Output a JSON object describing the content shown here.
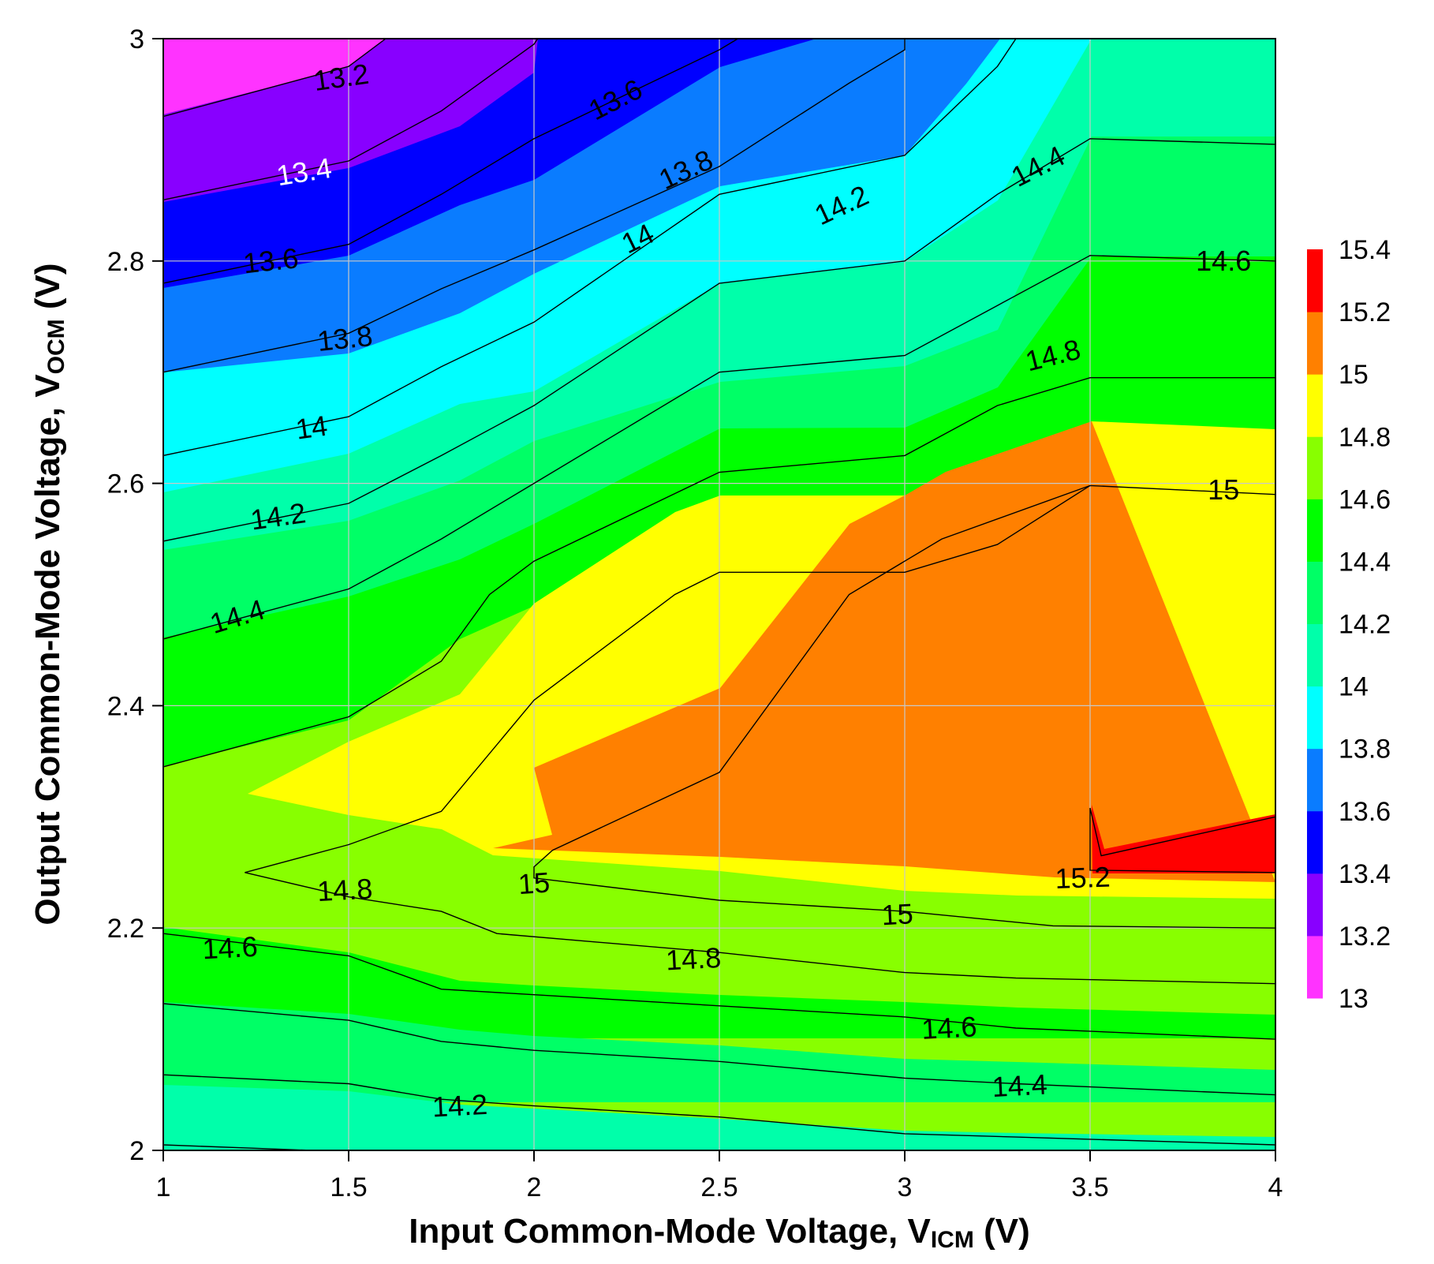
{
  "chart_data": {
    "type": "contour",
    "title": "",
    "xlabel_main": "Input Common-Mode Voltage, V",
    "xlabel_sub": "ICM",
    "xlabel_suffix": " (V)",
    "ylabel_main": "Output Common-Mode Voltage, V",
    "ylabel_sub": "OCM",
    "ylabel_suffix": " (V)",
    "xlim": [
      1,
      4
    ],
    "ylim": [
      2,
      3
    ],
    "x_ticks": [
      "1",
      "1.5",
      "2",
      "2.5",
      "3",
      "3.5",
      "4"
    ],
    "y_ticks": [
      "2",
      "2.2",
      "2.4",
      "2.6",
      "2.8",
      "3"
    ],
    "grid": true,
    "colorbar": {
      "placement": "right",
      "levels": [
        "13",
        "13.2",
        "13.4",
        "13.6",
        "13.8",
        "14",
        "14.2",
        "14.4",
        "14.6",
        "14.8",
        "15",
        "15.2",
        "15.4"
      ],
      "colors": [
        "#ff33ff",
        "#8800ff",
        "#0000ff",
        "#0a7cff",
        "#00ffff",
        "#00ffaa",
        "#00ff66",
        "#00ff00",
        "#88ff00",
        "#ffff00",
        "#ff8000",
        "#ff0000"
      ]
    },
    "contour_lines": [
      {
        "level": 13.2,
        "points": [
          [
            1.0,
            2.93
          ],
          [
            1.5,
            2.975
          ],
          [
            1.6,
            3.0
          ]
        ]
      },
      {
        "level": 13.4,
        "points": [
          [
            1.0,
            2.855
          ],
          [
            1.5,
            2.89
          ],
          [
            1.75,
            2.935
          ],
          [
            2.0,
            2.995
          ],
          [
            2.01,
            3.0
          ]
        ]
      },
      {
        "level": 13.6,
        "points": [
          [
            1.0,
            2.78
          ],
          [
            1.5,
            2.815
          ],
          [
            1.75,
            2.86
          ],
          [
            2.0,
            2.91
          ],
          [
            2.5,
            2.99
          ],
          [
            2.55,
            3.0
          ]
        ]
      },
      {
        "level": 13.8,
        "points": [
          [
            1.0,
            2.7
          ],
          [
            1.5,
            2.735
          ],
          [
            1.75,
            2.775
          ],
          [
            2.0,
            2.81
          ],
          [
            2.5,
            2.885
          ],
          [
            2.85,
            2.96
          ],
          [
            3.0,
            2.99
          ],
          [
            3.0,
            3.0
          ]
        ]
      },
      {
        "level": 14.0,
        "points": [
          [
            1.0,
            2.625
          ],
          [
            1.5,
            2.66
          ],
          [
            1.75,
            2.705
          ],
          [
            2.0,
            2.745
          ],
          [
            2.5,
            2.86
          ],
          [
            3.0,
            2.895
          ],
          [
            3.25,
            2.975
          ],
          [
            3.3,
            3.0
          ]
        ]
      },
      {
        "level": 14.2,
        "points": [
          [
            1.0,
            2.548
          ],
          [
            1.5,
            2.582
          ],
          [
            1.75,
            2.625
          ],
          [
            2.0,
            2.67
          ],
          [
            2.5,
            2.78
          ],
          [
            3.0,
            2.8
          ],
          [
            3.25,
            2.86
          ],
          [
            3.5,
            2.91
          ],
          [
            4.0,
            2.905
          ]
        ]
      },
      {
        "level": 14.4,
        "points": [
          [
            1.0,
            2.46
          ],
          [
            1.5,
            2.505
          ],
          [
            1.75,
            2.55
          ],
          [
            2.0,
            2.6
          ],
          [
            2.5,
            2.7
          ],
          [
            3.0,
            2.715
          ],
          [
            3.25,
            2.76
          ],
          [
            3.5,
            2.805
          ],
          [
            4.0,
            2.8
          ]
        ]
      },
      {
        "level": 14.6,
        "points": [
          [
            1.0,
            2.345
          ],
          [
            1.5,
            2.39
          ],
          [
            1.75,
            2.44
          ],
          [
            1.88,
            2.5
          ],
          [
            2.0,
            2.53
          ],
          [
            2.5,
            2.61
          ],
          [
            3.0,
            2.625
          ],
          [
            3.25,
            2.67
          ],
          [
            3.5,
            2.695
          ],
          [
            4.0,
            2.695
          ]
        ]
      },
      {
        "level": 14.8,
        "points": [
          [
            4.0,
            2.59
          ],
          [
            3.5,
            2.598
          ],
          [
            3.25,
            2.545
          ],
          [
            3.0,
            2.52
          ],
          [
            2.5,
            2.52
          ],
          [
            2.38,
            2.5
          ],
          [
            2.0,
            2.405
          ],
          [
            1.75,
            2.305
          ],
          [
            1.5,
            2.275
          ],
          [
            1.22,
            2.25
          ],
          [
            1.5,
            2.228
          ],
          [
            1.75,
            2.215
          ],
          [
            1.9,
            2.195
          ],
          [
            2.5,
            2.178
          ],
          [
            3.0,
            2.16
          ],
          [
            3.3,
            2.155
          ],
          [
            4.0,
            2.15
          ]
        ]
      },
      {
        "level": 15.0,
        "points": [
          [
            3.5,
            2.598
          ],
          [
            3.1,
            2.55
          ],
          [
            3.0,
            2.53
          ],
          [
            2.85,
            2.5
          ],
          [
            2.5,
            2.34
          ],
          [
            2.05,
            2.27
          ],
          [
            2.0,
            2.255
          ],
          [
            2.0,
            2.245
          ],
          [
            2.5,
            2.225
          ],
          [
            3.0,
            2.215
          ],
          [
            3.4,
            2.202
          ],
          [
            4.0,
            2.2
          ]
        ]
      },
      {
        "level": 15.2,
        "points": [
          [
            3.5,
            2.308
          ],
          [
            3.5,
            2.252
          ],
          [
            4.0,
            2.25
          ],
          [
            4.0,
            2.3
          ],
          [
            3.53,
            2.265
          ],
          [
            3.5,
            2.308
          ]
        ]
      },
      {
        "level": 14.6,
        "points": [
          [
            1.0,
            2.195
          ],
          [
            1.5,
            2.175
          ],
          [
            1.75,
            2.145
          ],
          [
            2.0,
            2.14
          ],
          [
            2.5,
            2.13
          ],
          [
            3.0,
            2.12
          ],
          [
            3.3,
            2.11
          ],
          [
            4.0,
            2.1
          ]
        ]
      },
      {
        "level": 14.4,
        "points": [
          [
            1.0,
            2.132
          ],
          [
            1.5,
            2.117
          ],
          [
            1.75,
            2.098
          ],
          [
            2.0,
            2.09
          ],
          [
            2.5,
            2.08
          ],
          [
            3.0,
            2.065
          ],
          [
            3.3,
            2.06
          ],
          [
            4.0,
            2.05
          ]
        ]
      },
      {
        "level": 14.2,
        "points": [
          [
            1.0,
            2.068
          ],
          [
            1.5,
            2.06
          ],
          [
            1.75,
            2.046
          ],
          [
            2.0,
            2.04
          ],
          [
            2.5,
            2.03
          ],
          [
            3.0,
            2.015
          ],
          [
            3.3,
            2.012
          ],
          [
            4.0,
            2.005
          ]
        ]
      },
      {
        "level": 14.0,
        "points": [
          [
            1.0,
            2.005
          ],
          [
            1.4,
            2.0
          ]
        ]
      }
    ],
    "contour_labels": [
      {
        "text": "13.2",
        "x": 1.48,
        "y": 2.965,
        "color": "#000000",
        "angle": -8
      },
      {
        "text": "13.4",
        "x": 1.38,
        "y": 2.88,
        "color": "#ffffff",
        "angle": -9
      },
      {
        "text": "13.6",
        "x": 1.29,
        "y": 2.8,
        "color": "#000000",
        "angle": -6
      },
      {
        "text": "13.6",
        "x": 2.22,
        "y": 2.945,
        "color": "#000000",
        "angle": -27
      },
      {
        "text": "13.8",
        "x": 1.49,
        "y": 2.73,
        "color": "#000000",
        "angle": -6
      },
      {
        "text": "13.8",
        "x": 2.41,
        "y": 2.882,
        "color": "#000000",
        "angle": -25
      },
      {
        "text": "14",
        "x": 1.4,
        "y": 2.65,
        "color": "#000000",
        "angle": -8
      },
      {
        "text": "14",
        "x": 2.28,
        "y": 2.82,
        "color": "#000000",
        "angle": -26
      },
      {
        "text": "14.2",
        "x": 1.31,
        "y": 2.57,
        "color": "#000000",
        "angle": -8
      },
      {
        "text": "14.2",
        "x": 2.83,
        "y": 2.85,
        "color": "#000000",
        "angle": -25
      },
      {
        "text": "14.4",
        "x": 1.2,
        "y": 2.48,
        "color": "#000000",
        "angle": -17
      },
      {
        "text": "14.4",
        "x": 3.36,
        "y": 2.885,
        "color": "#000000",
        "angle": -27
      },
      {
        "text": "14.6",
        "x": 3.86,
        "y": 2.8,
        "color": "#000000",
        "angle": 0
      },
      {
        "text": "14.8",
        "x": 3.4,
        "y": 2.715,
        "color": "#000000",
        "angle": -14
      },
      {
        "text": "15",
        "x": 3.86,
        "y": 2.594,
        "color": "#000000",
        "angle": 0
      },
      {
        "text": "14.8",
        "x": 1.49,
        "y": 2.234,
        "color": "#000000",
        "angle": -3
      },
      {
        "text": "15",
        "x": 2.0,
        "y": 2.24,
        "color": "#000000",
        "angle": -4
      },
      {
        "text": "15.2",
        "x": 3.48,
        "y": 2.245,
        "color": "#000000",
        "angle": -2
      },
      {
        "text": "15",
        "x": 2.98,
        "y": 2.212,
        "color": "#000000",
        "angle": -3
      },
      {
        "text": "14.6",
        "x": 1.18,
        "y": 2.182,
        "color": "#000000",
        "angle": -3
      },
      {
        "text": "14.8",
        "x": 2.43,
        "y": 2.172,
        "color": "#000000",
        "angle": -3
      },
      {
        "text": "14.6",
        "x": 3.12,
        "y": 2.11,
        "color": "#000000",
        "angle": -3
      },
      {
        "text": "14.4",
        "x": 3.31,
        "y": 2.058,
        "color": "#000000",
        "angle": -3
      },
      {
        "text": "14.2",
        "x": 1.8,
        "y": 2.04,
        "color": "#000000",
        "angle": -3
      }
    ]
  }
}
